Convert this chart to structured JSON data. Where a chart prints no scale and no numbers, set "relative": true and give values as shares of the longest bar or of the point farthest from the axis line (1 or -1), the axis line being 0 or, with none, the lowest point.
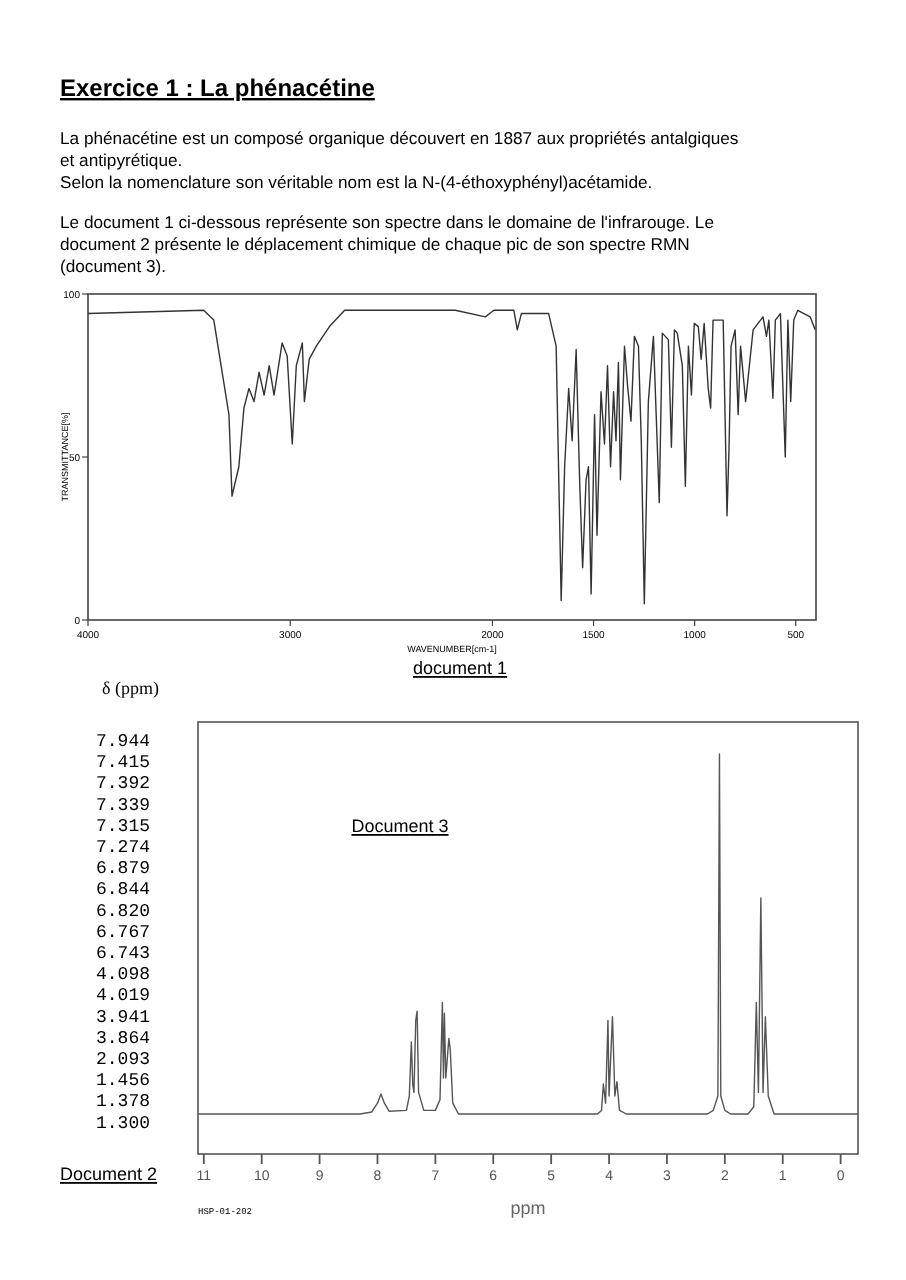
{
  "chart_data": [
    {
      "type": "line",
      "title": "Exercice 1 : La phénacétine",
      "xlabel": "WAVENUMBER[cm-1]",
      "ylabel": "TRANSMITTANCE[%]",
      "annotations": [
        "La phénacétine est un composé organique découvert en 1887 aux propriétés antalgiques",
        "et antipyrétique.",
        "Selon la nomenclature son véritable nom est la N-(4-éthoxyphényl)acétamide.",
        "Le document 1 ci-dessous représente son spectre dans le domaine de l'infrarouge. Le",
        "document 2 présente le déplacement chimique de chaque pic de son spectre RMN",
        "(document 3).",
        "document 1"
      ],
      "xlim": [
        4000,
        400
      ],
      "xticks": [
        4000,
        3000,
        2000,
        1500,
        1000,
        500
      ],
      "ylim": [
        0,
        100
      ],
      "yticks": [
        0,
        50,
        100
      ],
      "series": [
        {
          "color": "#333333",
          "x": [
            4000,
            3428,
            3378,
            3303,
            3288,
            3254,
            3229,
            3204,
            3179,
            3154,
            3129,
            3104,
            3080,
            3040,
            3015,
            2990,
            2970,
            2940,
            2930,
            2906,
            2871,
            2806,
            2731,
            2184,
            2035,
            1993,
            1894,
            1877,
            1857,
            1722,
            1685,
            1660,
            1643,
            1623,
            1606,
            1586,
            1569,
            1554,
            1537,
            1525,
            1512,
            1495,
            1483,
            1463,
            1446,
            1431,
            1416,
            1401,
            1389,
            1377,
            1367,
            1347,
            1332,
            1315,
            1298,
            1278,
            1264,
            1249,
            1229,
            1204,
            1175,
            1160,
            1130,
            1115,
            1100,
            1086,
            1061,
            1046,
            1031,
            1016,
            1002,
            982,
            968,
            953,
            933,
            921,
            909,
            859,
            840,
            830,
            820,
            800,
            785,
            773,
            748,
            711,
            662,
            645,
            633,
            613,
            601,
            576,
            552,
            539,
            525,
            510,
            490,
            429,
            404
          ],
          "values": [
            94,
            95,
            92,
            63,
            38,
            47,
            65,
            71,
            67,
            76,
            69,
            78,
            69,
            85,
            81,
            54,
            78,
            85,
            67,
            80,
            84,
            90,
            95,
            95,
            93,
            95,
            95,
            89,
            94,
            94,
            84,
            6,
            47,
            71,
            55,
            83,
            43,
            16,
            43,
            47,
            8,
            63,
            26,
            70,
            54,
            78,
            47,
            70,
            55,
            79,
            43,
            84,
            72,
            61,
            87,
            84,
            55,
            5,
            67,
            87,
            36,
            88,
            86,
            53,
            89,
            88,
            78,
            41,
            84,
            69,
            91,
            90,
            80,
            91,
            71,
            65,
            92,
            92,
            32,
            53,
            84,
            89,
            63,
            84,
            67,
            89,
            93,
            87,
            92,
            68,
            92,
            94,
            50,
            92,
            67,
            92,
            95,
            93,
            89
          ]
        }
      ]
    },
    {
      "type": "other",
      "title": "δ (ppm)",
      "annotations": [
        "7.944",
        "7.415",
        "7.392",
        "7.339",
        "7.315",
        "7.274",
        "6.879",
        "6.844",
        "6.820",
        "6.767",
        "6.743",
        "4.098",
        "4.019",
        "3.941",
        "3.864",
        "2.093",
        "1.456",
        "1.378",
        "1.300",
        "Document 2"
      ]
    },
    {
      "type": "line",
      "relative": true,
      "xlabel": "ppm",
      "tick_labels": "x",
      "annotations": [
        "Document 3",
        "HSP-01-202"
      ],
      "xlim": [
        11.1,
        -0.3
      ],
      "xticks": [
        11,
        10,
        9,
        8,
        7,
        6,
        5,
        4,
        3,
        2,
        1,
        0
      ],
      "series": [
        {
          "color": "#555555",
          "x": [
            11.1,
            8.3,
            8.1,
            8.0,
            7.94,
            7.88,
            7.8,
            7.5,
            7.45,
            7.415,
            7.39,
            7.37,
            7.339,
            7.315,
            7.29,
            7.2,
            7.0,
            6.92,
            6.879,
            6.86,
            6.844,
            6.82,
            6.767,
            6.743,
            6.7,
            6.6,
            4.2,
            4.13,
            4.098,
            4.06,
            4.019,
            4.0,
            3.941,
            3.9,
            3.864,
            3.82,
            3.7,
            2.3,
            2.2,
            2.12,
            2.093,
            2.07,
            2.0,
            1.9,
            1.6,
            1.5,
            1.456,
            1.42,
            1.378,
            1.34,
            1.3,
            1.25,
            1.15,
            -0.3
          ],
          "values": [
            0.1,
            0.1,
            0.105,
            0.127,
            0.15,
            0.127,
            0.107,
            0.109,
            0.145,
            0.28,
            0.172,
            0.154,
            0.334,
            0.357,
            0.154,
            0.109,
            0.109,
            0.136,
            0.379,
            0.19,
            0.352,
            0.19,
            0.289,
            0.262,
            0.127,
            0.1,
            0.1,
            0.109,
            0.175,
            0.127,
            0.334,
            0.145,
            0.343,
            0.145,
            0.181,
            0.109,
            0.1,
            0.1,
            0.109,
            0.145,
            1,
            0.145,
            0.109,
            0.1,
            0.1,
            0.118,
            0.379,
            0.154,
            0.64,
            0.154,
            0.343,
            0.145,
            0.1,
            0.1
          ]
        }
      ]
    }
  ]
}
